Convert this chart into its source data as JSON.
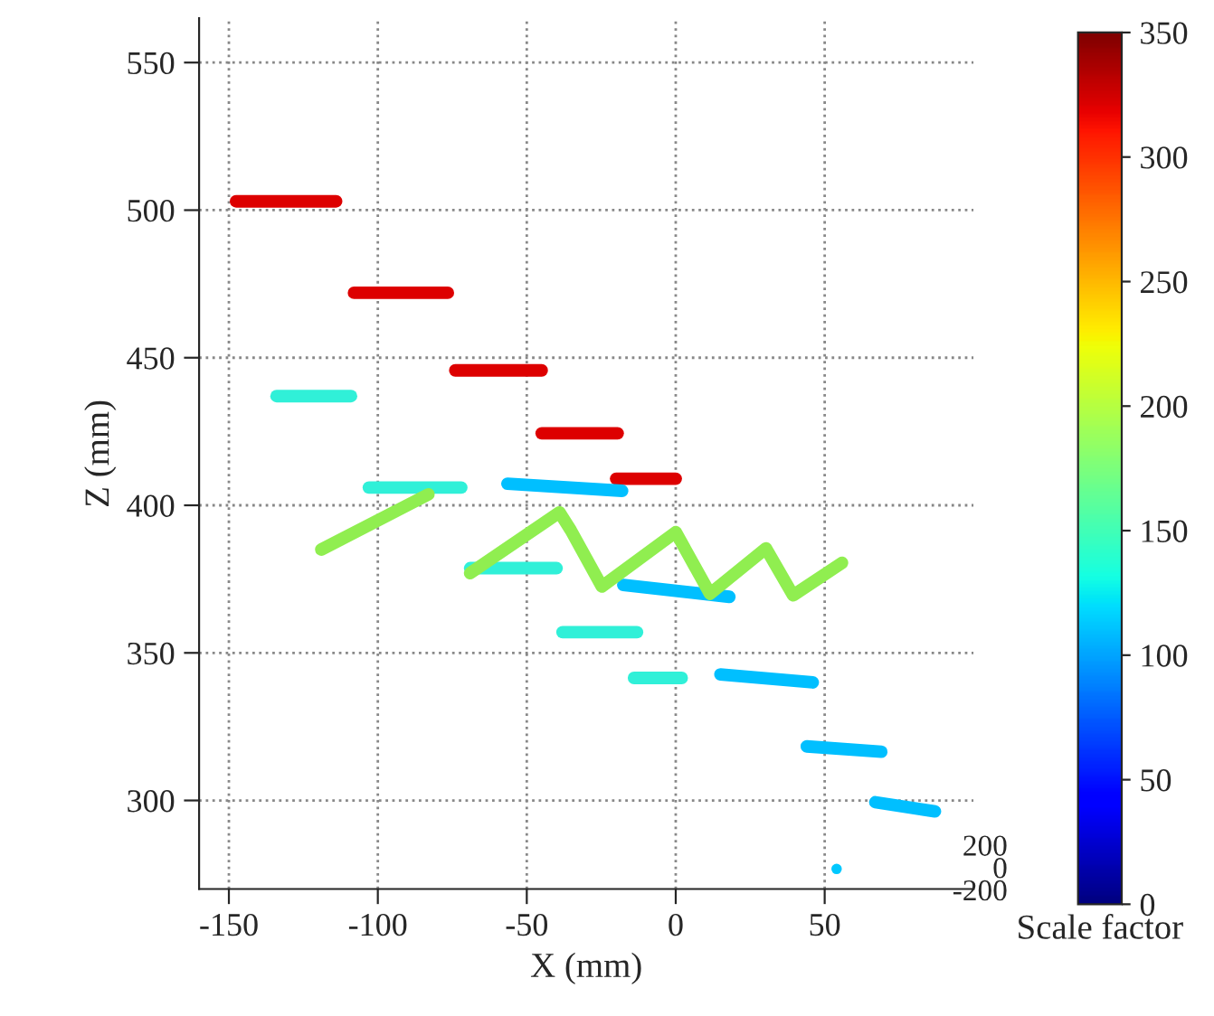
{
  "chart_data": {
    "type": "line",
    "xlabel": "X (mm)",
    "ylabel": "Z (mm)",
    "clabel": "Scale factor",
    "xlim": [
      -160,
      100
    ],
    "xticks": [
      -150,
      -100,
      -50,
      0,
      50
    ],
    "ylim": [
      270,
      565
    ],
    "yticks": [
      300,
      350,
      400,
      450,
      500,
      550
    ],
    "clim": [
      0,
      350
    ],
    "cticks": [
      0,
      50,
      100,
      150,
      200,
      250,
      300,
      350
    ],
    "grid": true,
    "line_style": "solid",
    "marker": "none",
    "annotations": [
      "200",
      "0",
      "-200"
    ],
    "series": [
      {
        "color": "#dd0000",
        "x": [
          -147.6,
          -114
        ],
        "values": [
          503,
          503
        ]
      },
      {
        "color": "#dd0000",
        "x": [
          -108,
          -76.5
        ],
        "values": [
          472,
          472
        ]
      },
      {
        "color": "#dd0000",
        "x": [
          -74,
          -45
        ],
        "values": [
          445.7,
          445.7
        ]
      },
      {
        "color": "#dd0000",
        "x": [
          -45,
          -19.5
        ],
        "values": [
          424.4,
          424.4
        ]
      },
      {
        "color": "#dd0000",
        "x": [
          -20,
          0
        ],
        "values": [
          409,
          409
        ]
      },
      {
        "color": "#30f0d8",
        "x": [
          -134,
          -109
        ],
        "values": [
          437,
          437
        ]
      },
      {
        "color": "#30f0d8",
        "x": [
          -103,
          -72
        ],
        "values": [
          406,
          406
        ]
      },
      {
        "color": "#30f0d8",
        "x": [
          -69,
          -40
        ],
        "values": [
          378.7,
          378.7
        ]
      },
      {
        "color": "#30f0d8",
        "x": [
          -38,
          -13
        ],
        "values": [
          357,
          357
        ]
      },
      {
        "color": "#30f0d8",
        "x": [
          -14,
          2
        ],
        "values": [
          341.5,
          341.5
        ]
      },
      {
        "color": "#00bfff",
        "x": [
          -56.5,
          -18
        ],
        "values": [
          407.3,
          404.9
        ]
      },
      {
        "color": "#00bfff",
        "x": [
          -17.6,
          18
        ],
        "values": [
          373,
          369
        ]
      },
      {
        "color": "#00bfff",
        "x": [
          15,
          46
        ],
        "values": [
          342.7,
          340
        ]
      },
      {
        "color": "#00bfff",
        "x": [
          44,
          69
        ],
        "values": [
          318.3,
          316.5
        ]
      },
      {
        "color": "#00bfff",
        "x": [
          67,
          87
        ],
        "values": [
          299.4,
          296.3
        ]
      },
      {
        "color": "#90ee50",
        "x": [
          -119,
          -83
        ],
        "values": [
          385,
          403.7
        ]
      },
      {
        "color": "#90ee50",
        "x": [
          -69,
          -39,
          -35.2,
          -24.8,
          0,
          11.5,
          30.3,
          39.4,
          55.8
        ],
        "values": [
          377,
          397.6,
          391.5,
          372.5,
          390.9,
          370,
          385.4,
          369.5,
          380.5
        ]
      },
      {
        "type": "scatter",
        "marker": "circle",
        "color": "#00c8ff",
        "x": [
          54
        ],
        "values": [
          276.8
        ]
      }
    ]
  }
}
